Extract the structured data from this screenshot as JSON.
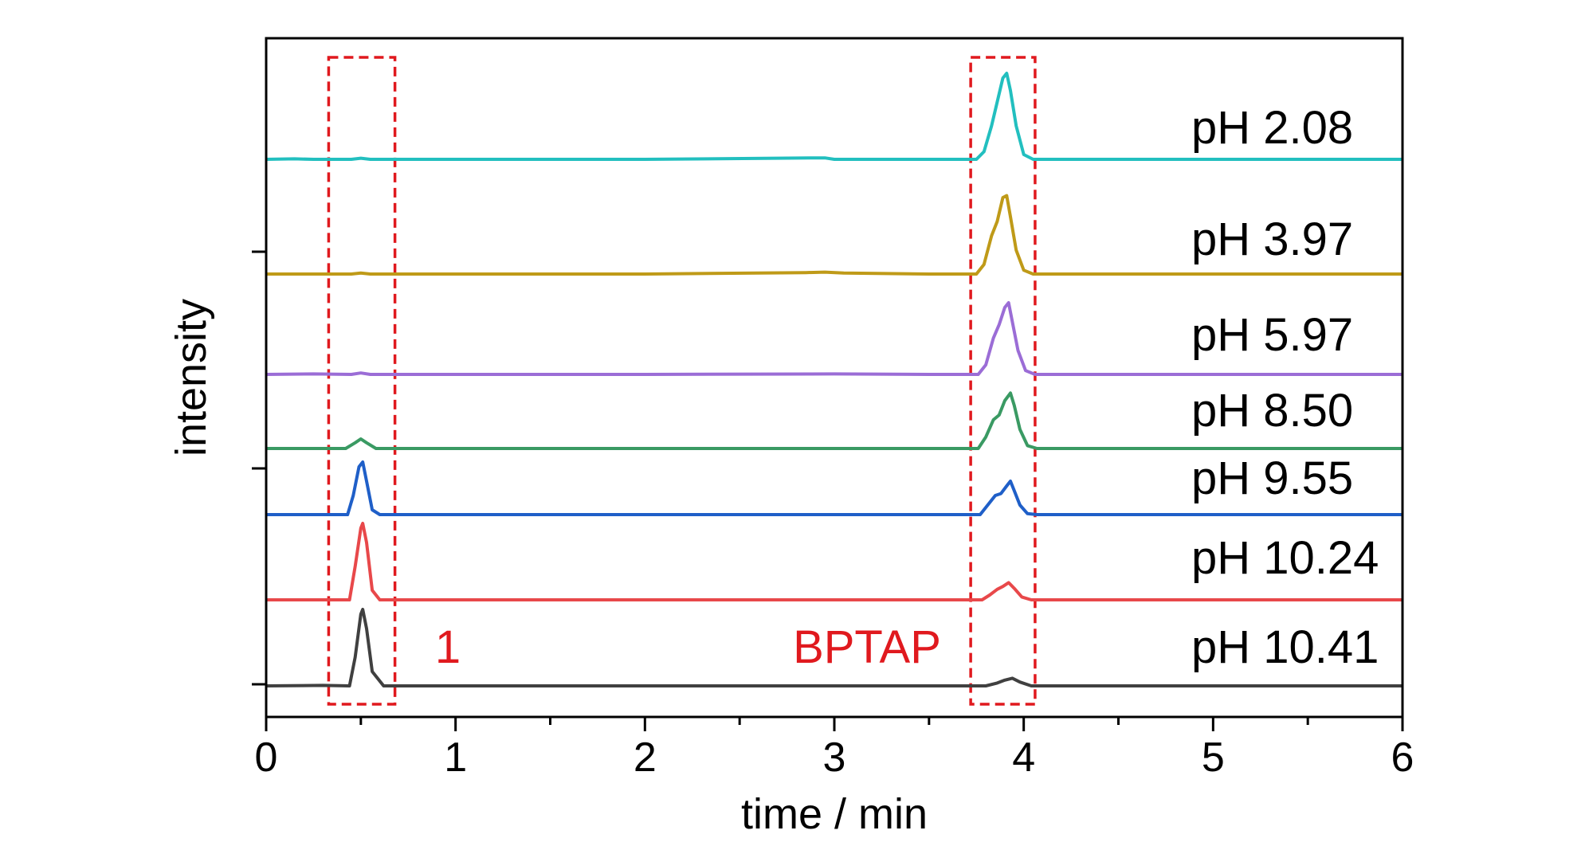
{
  "chart_data": {
    "type": "line",
    "xlabel": "time / min",
    "ylabel": "intensity",
    "xlim": [
      0,
      6
    ],
    "x_ticks": [
      "0",
      "1",
      "2",
      "3",
      "4",
      "5",
      "6"
    ],
    "grid": false,
    "series": [
      {
        "name": "pH 2.08",
        "color": "#22BFBF",
        "x": [
          0,
          0.15,
          0.25,
          0.45,
          0.5,
          0.55,
          1.0,
          2.0,
          2.9,
          2.95,
          3.0,
          3.5,
          3.75,
          3.79,
          3.83,
          3.86,
          3.89,
          3.91,
          3.93,
          3.96,
          4.0,
          4.05,
          5.0,
          6.0
        ],
        "y": [
          0.0,
          0.005,
          0.0,
          0.0,
          0.012,
          0.0,
          0.0,
          0.0,
          0.015,
          0.015,
          0.0,
          0.0,
          0.0,
          0.08,
          0.35,
          0.6,
          0.85,
          0.9,
          0.72,
          0.35,
          0.05,
          0.0,
          0.0,
          0.0
        ]
      },
      {
        "name": "pH 3.97",
        "color": "#BF9A18",
        "x": [
          0,
          0.25,
          0.45,
          0.5,
          0.55,
          1.0,
          2.0,
          2.85,
          2.95,
          3.05,
          3.5,
          3.75,
          3.79,
          3.83,
          3.86,
          3.89,
          3.91,
          3.93,
          3.96,
          4.0,
          4.05,
          5.0,
          6.0
        ],
        "y": [
          0.0,
          0.0,
          0.0,
          0.01,
          0.0,
          0.0,
          0.0,
          0.015,
          0.02,
          0.01,
          0.0,
          0.0,
          0.1,
          0.4,
          0.55,
          0.8,
          0.82,
          0.6,
          0.25,
          0.04,
          0.0,
          0.0,
          0.0
        ]
      },
      {
        "name": "pH 5.97",
        "color": "#9B6DD6",
        "x": [
          0,
          0.25,
          0.45,
          0.5,
          0.55,
          1.0,
          2.0,
          3.0,
          3.5,
          3.76,
          3.8,
          3.84,
          3.87,
          3.9,
          3.92,
          3.94,
          3.97,
          4.01,
          4.06,
          5.0,
          6.0
        ],
        "y": [
          0.0,
          0.005,
          0.0,
          0.015,
          0.0,
          0.0,
          0.0,
          0.005,
          0.0,
          0.0,
          0.1,
          0.38,
          0.52,
          0.7,
          0.75,
          0.55,
          0.25,
          0.04,
          0.0,
          0.0,
          0.0
        ]
      },
      {
        "name": "pH 8.50",
        "color": "#3A9A63",
        "x": [
          0,
          0.3,
          0.42,
          0.47,
          0.5,
          0.53,
          0.58,
          1.0,
          2.0,
          3.0,
          3.5,
          3.76,
          3.8,
          3.84,
          3.87,
          3.9,
          3.93,
          3.95,
          3.98,
          4.02,
          4.07,
          5.0,
          6.0
        ],
        "y": [
          0.0,
          0.0,
          0.0,
          0.06,
          0.1,
          0.06,
          0.0,
          0.0,
          0.0,
          0.0,
          0.0,
          0.0,
          0.12,
          0.3,
          0.35,
          0.5,
          0.58,
          0.45,
          0.2,
          0.03,
          0.0,
          0.0,
          0.0
        ]
      },
      {
        "name": "pH 9.55",
        "color": "#1F5FC8",
        "x": [
          0,
          0.3,
          0.43,
          0.46,
          0.49,
          0.51,
          0.53,
          0.56,
          0.6,
          1.0,
          2.0,
          3.0,
          3.5,
          3.77,
          3.81,
          3.85,
          3.88,
          3.91,
          3.93,
          3.95,
          3.98,
          4.02,
          4.07,
          5.0,
          6.0
        ],
        "y": [
          0.0,
          0.0,
          0.0,
          0.2,
          0.5,
          0.55,
          0.35,
          0.05,
          0.0,
          0.0,
          0.0,
          0.0,
          0.0,
          0.0,
          0.1,
          0.2,
          0.22,
          0.3,
          0.35,
          0.25,
          0.1,
          0.01,
          0.0,
          0.0,
          0.0
        ]
      },
      {
        "name": "pH 10.24",
        "color": "#E8484A",
        "x": [
          0,
          0.3,
          0.44,
          0.47,
          0.5,
          0.51,
          0.53,
          0.56,
          0.6,
          1.0,
          2.0,
          3.0,
          3.5,
          3.78,
          3.82,
          3.86,
          3.89,
          3.92,
          3.95,
          3.99,
          4.04,
          5.0,
          6.0
        ],
        "y": [
          0.0,
          0.0,
          0.0,
          0.35,
          0.75,
          0.8,
          0.6,
          0.1,
          0.0,
          0.0,
          0.0,
          0.0,
          0.0,
          0.0,
          0.05,
          0.11,
          0.14,
          0.18,
          0.12,
          0.03,
          0.0,
          0.0,
          0.0
        ]
      },
      {
        "name": "pH 10.41",
        "color": "#404040",
        "x": [
          0,
          0.3,
          0.44,
          0.47,
          0.5,
          0.51,
          0.53,
          0.56,
          0.62,
          1.0,
          2.0,
          3.0,
          3.5,
          3.8,
          3.86,
          3.9,
          3.94,
          3.98,
          4.04,
          5.0,
          6.0
        ],
        "y": [
          0.0,
          0.005,
          0.0,
          0.3,
          0.75,
          0.8,
          0.6,
          0.15,
          0.0,
          0.0,
          0.0,
          0.0,
          0.0,
          0.0,
          0.03,
          0.06,
          0.08,
          0.04,
          0.0,
          0.0,
          0.0
        ]
      }
    ],
    "annotations": [
      {
        "text": "1",
        "color": "#E0191E",
        "box_x": [
          0.33,
          0.68
        ]
      },
      {
        "text": "BPTAP",
        "color": "#E0191E",
        "box_x": [
          3.72,
          4.06
        ]
      }
    ]
  }
}
